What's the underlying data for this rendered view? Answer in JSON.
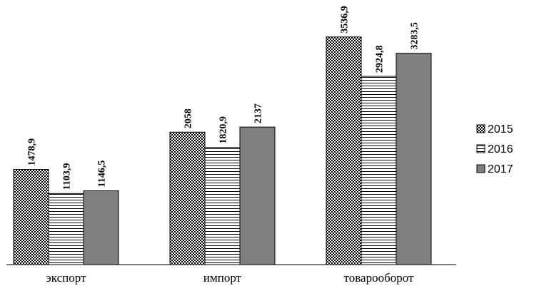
{
  "chart_data": {
    "type": "bar",
    "categories": [
      "экспорт",
      "импорт",
      "товарооборот"
    ],
    "series": [
      {
        "name": "2015",
        "values": [
          1478.9,
          2058,
          3536.9
        ],
        "labels": [
          "1478,9",
          "2058",
          "3536,9"
        ],
        "pattern": "checker"
      },
      {
        "name": "2016",
        "values": [
          1103.9,
          1820.9,
          2924.8
        ],
        "labels": [
          "1103,9",
          "1820,9",
          "2924,8"
        ],
        "pattern": "hlines"
      },
      {
        "name": "2017",
        "values": [
          1146.5,
          2137,
          3283.5
        ],
        "labels": [
          "1146,5",
          "2137",
          "3283,5"
        ],
        "pattern": "solid"
      }
    ],
    "ylim": [
      0,
      4000
    ],
    "grid": false,
    "legend": "right",
    "colors": {
      "solid": "#7f7f7f",
      "stroke": "#000000",
      "axis": "#000000"
    }
  }
}
